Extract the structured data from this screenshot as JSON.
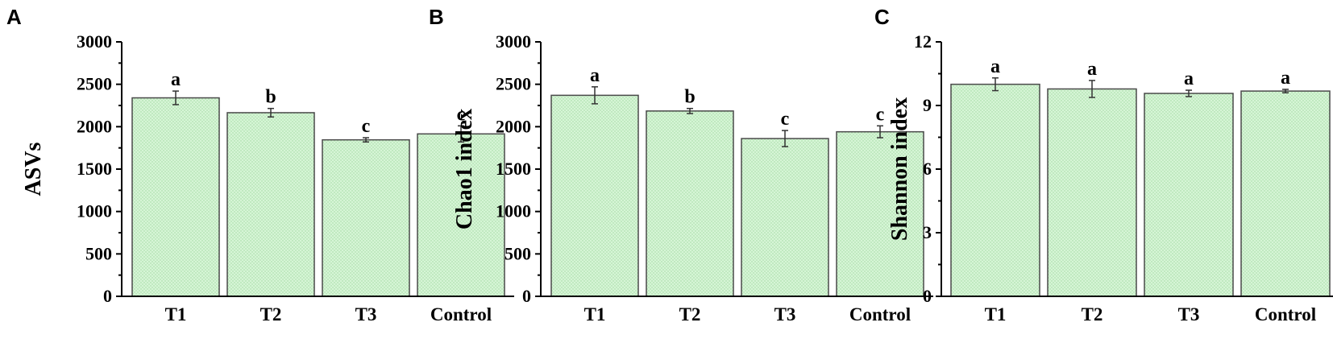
{
  "chart_data": [
    {
      "panel": "A",
      "type": "bar",
      "categories": [
        "T1",
        "T2",
        "T3",
        "Control"
      ],
      "values": [
        2340,
        2165,
        1845,
        1915
      ],
      "errors": [
        80,
        50,
        25,
        95
      ],
      "significance": [
        "a",
        "b",
        "c",
        "c"
      ],
      "ylabel": "ASVs",
      "ylim": [
        0,
        3000
      ],
      "yticks": [
        0,
        500,
        1000,
        1500,
        2000,
        2500,
        3000
      ]
    },
    {
      "panel": "B",
      "type": "bar",
      "categories": [
        "T1",
        "T2",
        "T3",
        "Control"
      ],
      "values": [
        2370,
        2185,
        1860,
        1940
      ],
      "errors": [
        100,
        30,
        95,
        70
      ],
      "significance": [
        "a",
        "b",
        "c",
        "c"
      ],
      "ylabel": "Chao1 index",
      "ylim": [
        0,
        3000
      ],
      "yticks": [
        0,
        500,
        1000,
        1500,
        2000,
        2500,
        3000
      ]
    },
    {
      "panel": "C",
      "type": "bar",
      "categories": [
        "T1",
        "T2",
        "T3",
        "Control"
      ],
      "values": [
        10.0,
        9.78,
        9.57,
        9.68
      ],
      "errors": [
        0.3,
        0.4,
        0.15,
        0.08
      ],
      "significance": [
        "a",
        "a",
        "a",
        "a"
      ],
      "ylabel": "Shannon index",
      "ylim": [
        0,
        12
      ],
      "yticks": [
        0,
        3,
        6,
        9,
        12
      ]
    }
  ],
  "colors": {
    "bar_fill": "#d6f5d6",
    "bar_dots": "#9fd89f",
    "bar_edge": "#4a4a4a",
    "axis": "#000000"
  }
}
